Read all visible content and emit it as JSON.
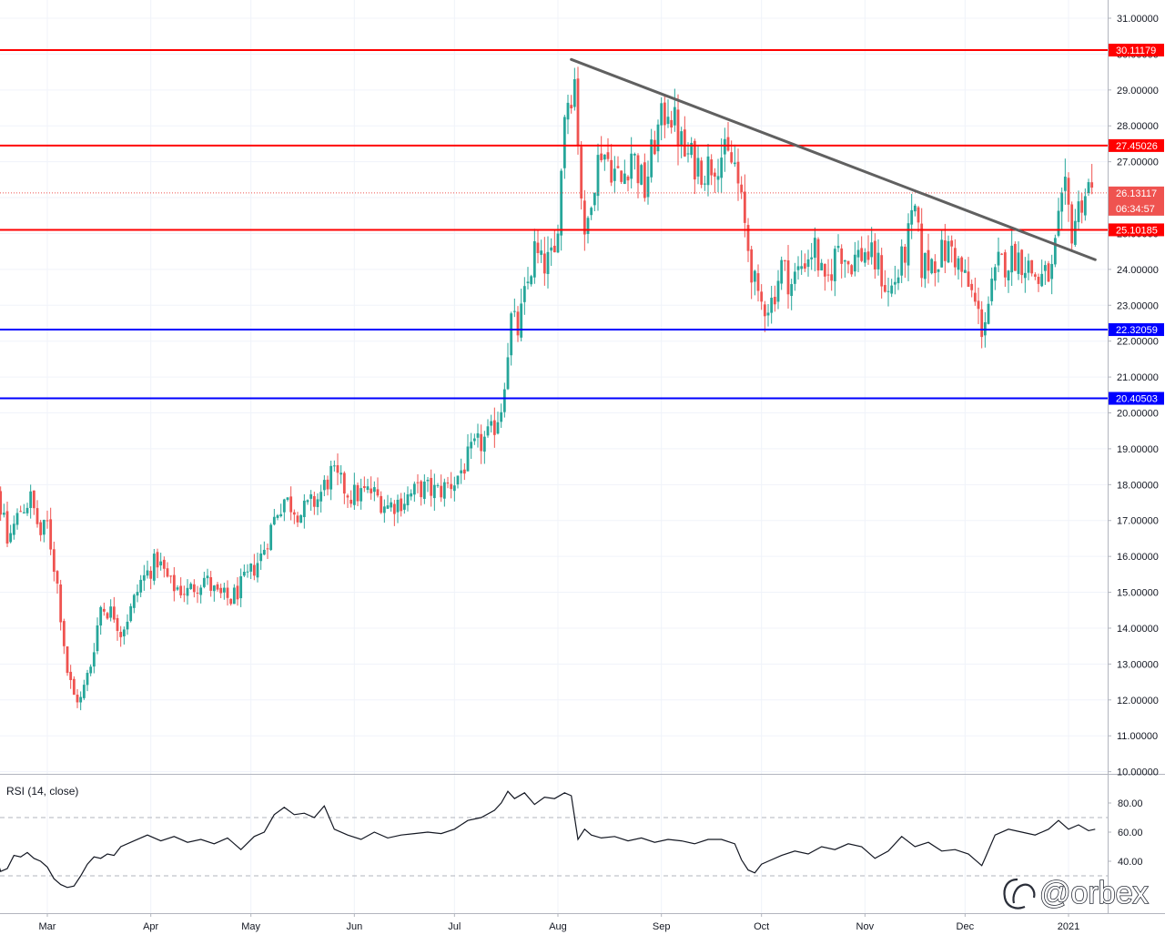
{
  "chart_data": [
    {
      "type": "candlestick",
      "ylim": [
        10,
        31.5
      ],
      "yticks": [
        "31.00000",
        "30.00000",
        "29.00000",
        "28.00000",
        "27.00000",
        "26.00000",
        "25.00000",
        "24.00000",
        "23.00000",
        "22.00000",
        "21.00000",
        "20.00000",
        "19.00000",
        "18.00000",
        "17.00000",
        "16.00000",
        "15.00000",
        "14.00000",
        "13.00000",
        "12.00000",
        "11.00000",
        "10.00000"
      ],
      "ytick_values": [
        31,
        30,
        29,
        28,
        27,
        26,
        25,
        24,
        23,
        22,
        21,
        20,
        19,
        18,
        17,
        16,
        15,
        14,
        13,
        12,
        11,
        10
      ],
      "xticks": [
        "Mar",
        "Apr",
        "May",
        "Jun",
        "Jul",
        "Aug",
        "Sep",
        "Oct",
        "Nov",
        "Dec",
        "2021"
      ],
      "xtick_days": [
        60,
        91,
        121,
        152,
        182,
        213,
        244,
        274,
        305,
        335,
        366
      ],
      "colors": {
        "up": "#26a69a",
        "down": "#ef5350",
        "resistance": "#ff0000",
        "support": "#0000ff",
        "trendline": "#606060",
        "current": "#ef5350"
      },
      "anchors": [
        [
          38,
          18.9
        ],
        [
          45,
          17.9
        ],
        [
          48,
          16.4
        ],
        [
          52,
          17.3
        ],
        [
          55,
          17.6
        ],
        [
          58,
          16.6
        ],
        [
          60,
          16.9
        ],
        [
          63,
          15.2
        ],
        [
          66,
          12.8
        ],
        [
          68,
          12.1
        ],
        [
          70,
          12.0
        ],
        [
          73,
          13.0
        ],
        [
          76,
          14.6
        ],
        [
          80,
          14.4
        ],
        [
          82,
          13.9
        ],
        [
          85,
          14.5
        ],
        [
          88,
          15.3
        ],
        [
          93,
          15.9
        ],
        [
          97,
          15.2
        ],
        [
          102,
          15.0
        ],
        [
          107,
          15.4
        ],
        [
          111,
          14.9
        ],
        [
          115,
          14.8
        ],
        [
          120,
          15.4
        ],
        [
          124,
          16.0
        ],
        [
          129,
          17.3
        ],
        [
          131,
          17.6
        ],
        [
          136,
          17.2
        ],
        [
          141,
          17.6
        ],
        [
          145,
          18.3
        ],
        [
          151,
          17.7
        ],
        [
          157,
          17.8
        ],
        [
          162,
          17.4
        ],
        [
          167,
          17.6
        ],
        [
          172,
          17.9
        ],
        [
          177,
          17.8
        ],
        [
          182,
          18.1
        ],
        [
          188,
          19.0
        ],
        [
          193,
          19.4
        ],
        [
          196,
          20.2
        ],
        [
          199,
          22.6
        ],
        [
          201,
          22.3
        ],
        [
          206,
          24.5
        ],
        [
          208,
          24.1
        ],
        [
          212,
          24.3
        ],
        [
          214,
          26.7
        ],
        [
          215,
          28.5
        ],
        [
          218,
          29.3
        ],
        [
          221,
          24.6
        ],
        [
          223,
          26.2
        ],
        [
          226,
          27.4
        ],
        [
          232,
          26.4
        ],
        [
          235,
          27.3
        ],
        [
          239,
          26.2
        ],
        [
          242,
          27.6
        ],
        [
          246,
          28.6
        ],
        [
          251,
          27.2
        ],
        [
          257,
          26.8
        ],
        [
          262,
          27.2
        ],
        [
          266,
          26.9
        ],
        [
          270,
          24.6
        ],
        [
          273,
          23.0
        ],
        [
          277,
          23.1
        ],
        [
          280,
          24.1
        ],
        [
          283,
          23.6
        ],
        [
          287,
          24.3
        ],
        [
          290,
          24.6
        ],
        [
          293,
          23.4
        ],
        [
          297,
          24.7
        ],
        [
          300,
          24.2
        ],
        [
          305,
          24.5
        ],
        [
          309,
          24.1
        ],
        [
          312,
          23.3
        ],
        [
          315,
          23.9
        ],
        [
          317,
          24.5
        ],
        [
          320,
          25.6
        ],
        [
          322,
          24.1
        ],
        [
          326,
          24.3
        ],
        [
          331,
          24.6
        ],
        [
          334,
          23.9
        ],
        [
          337,
          23.3
        ],
        [
          340,
          22.4
        ],
        [
          341,
          22.7
        ],
        [
          345,
          24.1
        ],
        [
          350,
          24.4
        ],
        [
          353,
          24.2
        ],
        [
          357,
          23.7
        ],
        [
          361,
          23.9
        ],
        [
          363,
          25.2
        ],
        [
          365,
          26.1
        ],
        [
          367,
          25.1
        ],
        [
          370,
          26.0
        ],
        [
          372,
          26.3
        ],
        [
          373,
          26.1
        ]
      ],
      "hlines": [
        {
          "value": 30.11179,
          "label": "30.11179",
          "kind": "resistance"
        },
        {
          "value": 27.45026,
          "label": "27.45026",
          "kind": "resistance"
        },
        {
          "value": 25.10185,
          "label": "25.10185",
          "kind": "resistance"
        },
        {
          "value": 22.32059,
          "label": "22.32059",
          "kind": "support"
        },
        {
          "value": 20.40503,
          "label": "20.40503",
          "kind": "support"
        }
      ],
      "trendline": [
        [
          217,
          29.85
        ],
        [
          374,
          24.27
        ]
      ],
      "current_price": {
        "value": 26.13117,
        "label": "26.13117",
        "countdown": "06:34:57"
      }
    },
    {
      "type": "line",
      "title": "RSI (14, close)",
      "ylim": [
        20,
        92
      ],
      "yticks": [
        "80.00",
        "60.00",
        "40.00"
      ],
      "ytick_values": [
        80,
        60,
        40
      ],
      "bands": [
        70,
        30
      ],
      "series": [
        {
          "x": [
            35,
            38,
            40,
            42,
            44,
            46,
            48,
            50,
            52,
            54,
            56,
            58,
            60,
            62,
            64,
            66,
            68,
            70,
            72,
            74,
            76,
            78,
            80,
            82,
            86,
            90,
            94,
            98,
            102,
            106,
            110,
            114,
            118,
            122,
            125,
            128,
            131,
            134,
            137,
            140,
            143,
            146,
            150,
            154,
            158,
            162,
            166,
            170,
            174,
            178,
            182,
            186,
            190,
            194,
            196,
            198,
            200,
            203,
            206,
            209,
            212,
            215,
            217,
            219,
            221,
            223,
            226,
            230,
            234,
            238,
            242,
            246,
            250,
            254,
            258,
            262,
            266,
            268,
            270,
            272,
            274,
            276,
            280,
            284,
            288,
            292,
            296,
            300,
            304,
            308,
            312,
            316,
            320,
            324,
            328,
            332,
            336,
            340,
            341,
            344,
            348,
            352,
            356,
            360,
            363,
            366,
            369,
            372,
            374
          ],
          "values": [
            60,
            66,
            64,
            55,
            48,
            33,
            35,
            44,
            43,
            46,
            42,
            40,
            36,
            28,
            24,
            22,
            23,
            30,
            38,
            43,
            42,
            45,
            44,
            50,
            54,
            58,
            54,
            57,
            53,
            55,
            52,
            56,
            48,
            57,
            60,
            72,
            77,
            72,
            73,
            70,
            78,
            62,
            58,
            55,
            60,
            56,
            58,
            59,
            60,
            59,
            62,
            68,
            70,
            75,
            80,
            88,
            83,
            87,
            79,
            84,
            83,
            87,
            85,
            55,
            62,
            58,
            56,
            57,
            54,
            56,
            53,
            55,
            54,
            52,
            55,
            55,
            52,
            41,
            34,
            32,
            38,
            40,
            44,
            47,
            45,
            50,
            48,
            52,
            50,
            42,
            47,
            57,
            50,
            53,
            47,
            48,
            45,
            37,
            42,
            58,
            62,
            60,
            58,
            62,
            68,
            62,
            65,
            61,
            62
          ]
        }
      ]
    }
  ],
  "watermark": "@orbex"
}
